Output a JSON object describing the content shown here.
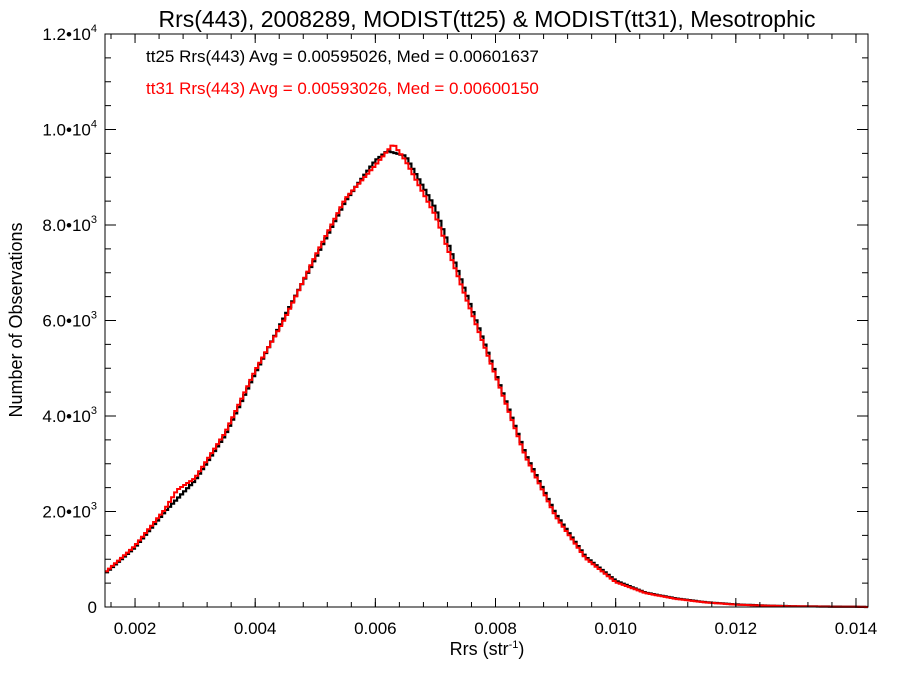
{
  "chart_data": {
    "type": "line",
    "title": "Rrs(443), 2008289, MODIST(tt25) & MODIST(tt31), Mesotrophic",
    "xlabel": {
      "base": "Rrs (str",
      "sup": "-1",
      "tail": ")"
    },
    "ylabel": "Number of Observations",
    "xlim": [
      0.0015,
      0.0142
    ],
    "ylim": [
      0,
      12000
    ],
    "x_ticks": [
      {
        "value": 0.002,
        "label": "0.002"
      },
      {
        "value": 0.004,
        "label": "0.004"
      },
      {
        "value": 0.006,
        "label": "0.006"
      },
      {
        "value": 0.008,
        "label": "0.008"
      },
      {
        "value": 0.01,
        "label": "0.010"
      },
      {
        "value": 0.012,
        "label": "0.012"
      },
      {
        "value": 0.014,
        "label": "0.014"
      }
    ],
    "y_ticks": [
      {
        "value": 0,
        "mant": "0",
        "exp": ""
      },
      {
        "value": 2000,
        "mant": "2.0•10",
        "exp": "3"
      },
      {
        "value": 4000,
        "mant": "4.0•10",
        "exp": "3"
      },
      {
        "value": 6000,
        "mant": "6.0•10",
        "exp": "3"
      },
      {
        "value": 8000,
        "mant": "8.0•10",
        "exp": "3"
      },
      {
        "value": 10000,
        "mant": "1.0•10",
        "exp": "4"
      },
      {
        "value": 12000,
        "mant": "1.2•10",
        "exp": "4"
      }
    ],
    "series": [
      {
        "name": "tt25",
        "color": "#000000",
        "legend": "tt25 Rrs(443) Avg = 0.00595026, Med = 0.00601637",
        "step": true,
        "x": [
          0.0015,
          0.002,
          0.0025,
          0.003,
          0.0035,
          0.004,
          0.0045,
          0.005,
          0.0055,
          0.006,
          0.0062,
          0.0065,
          0.007,
          0.0075,
          0.008,
          0.0085,
          0.009,
          0.0095,
          0.01,
          0.0105,
          0.011,
          0.0115,
          0.012,
          0.0125,
          0.013,
          0.0135,
          0.014,
          0.0142
        ],
        "y": [
          700,
          1250,
          2000,
          2650,
          3600,
          4900,
          6100,
          7300,
          8500,
          9350,
          9550,
          9450,
          8350,
          6600,
          4900,
          3200,
          1950,
          1050,
          550,
          300,
          180,
          100,
          55,
          30,
          15,
          10,
          5,
          0
        ]
      },
      {
        "name": "tt31",
        "color": "#ff0000",
        "legend": "tt31 Rrs(443) Avg = 0.00593026, Med = 0.00600150",
        "step": true,
        "x": [
          0.0015,
          0.002,
          0.0025,
          0.0027,
          0.003,
          0.0035,
          0.004,
          0.0045,
          0.005,
          0.0055,
          0.006,
          0.0063,
          0.0065,
          0.007,
          0.0075,
          0.008,
          0.0085,
          0.009,
          0.0095,
          0.01,
          0.0105,
          0.011,
          0.0115,
          0.012,
          0.0125,
          0.013,
          0.0135,
          0.014,
          0.0142
        ],
        "y": [
          720,
          1280,
          2050,
          2450,
          2700,
          3650,
          4950,
          6050,
          7350,
          8550,
          9250,
          9700,
          9350,
          8200,
          6500,
          4850,
          3150,
          1900,
          1020,
          520,
          290,
          170,
          95,
          50,
          28,
          14,
          8,
          5,
          0
        ]
      }
    ]
  }
}
